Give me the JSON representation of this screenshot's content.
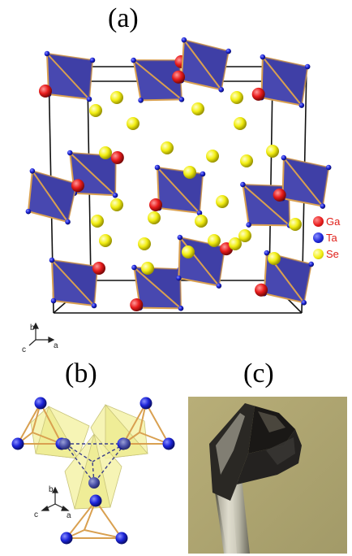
{
  "panels": {
    "a": "(a)",
    "b": "(b)",
    "c": "(c)"
  },
  "legend": [
    {
      "label": "Ga",
      "color": "#e81c1c"
    },
    {
      "label": "Ta",
      "color": "#1c24d8"
    },
    {
      "label": "Se",
      "color": "#f2ee12"
    }
  ],
  "axes_a": {
    "b": "b",
    "c": "c",
    "a": "a"
  },
  "axes_b": {
    "b": "b",
    "c": "c",
    "a": "a"
  },
  "colors": {
    "tetrahedron_fill": "#4848b0",
    "tetrahedron_edge": "#d9a050",
    "octahedron_fill": "#f4f2a8",
    "photo_background": "#b0a872"
  }
}
